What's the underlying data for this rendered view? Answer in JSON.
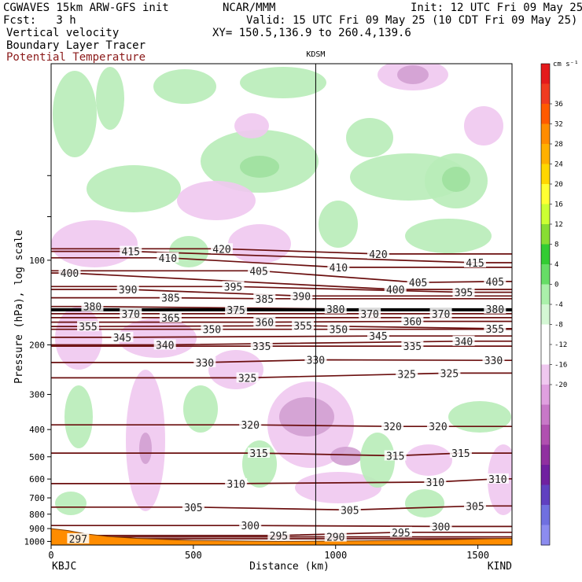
{
  "header": {
    "left_line1": "CGWAVES 15km ARW-GFS init",
    "left_line2": "Fcst:   3 h",
    "center_line1": "NCAR/MMM",
    "right_line1": "Init: 12 UTC Fri 09 May 25",
    "right_line2": "Valid: 15 UTC Fri 09 May 25 (10 CDT Fri 09 May 25)",
    "xy_line": "XY= 150.5,136.9 to 260.4,139.6"
  },
  "fields": {
    "field1": "Vertical velocity",
    "field2": "Boundary Layer Tracer",
    "field3": "Potential Temperature",
    "field3_color": "#8b1a1a"
  },
  "chart_data": {
    "type": "cross-section",
    "station_marker": {
      "label": "KDSM",
      "x": 930
    },
    "xlabel": "Distance (km)",
    "ylabel": "Pressure (hPa), log scale",
    "xlim": [
      0,
      1620
    ],
    "ylim": [
      1030,
      20
    ],
    "y_scale": "log",
    "x_ticks": [
      0,
      500,
      1000,
      1500
    ],
    "y_ticks": [
      100,
      200,
      300,
      400,
      500,
      600,
      700,
      800,
      900,
      1000
    ],
    "y_tick_labels": [
      "100",
      "200",
      "300",
      "400",
      "500",
      "600",
      "700",
      "800",
      "900",
      "1000"
    ],
    "x_endpoints": {
      "left": "KBJC",
      "right": "KIND"
    },
    "colorbar": {
      "unit": "cm s⁻¹",
      "labels": [
        "36",
        "32",
        "28",
        "24",
        "20",
        "16",
        "12",
        "8",
        "4",
        "0",
        "-4",
        "-8",
        "-12",
        "-16",
        "-20"
      ],
      "colors": [
        "#e41a1c",
        "#f03b20",
        "#ff5a00",
        "#ff8c00",
        "#ffb000",
        "#ffd700",
        "#ffff33",
        "#ccff33",
        "#88dd33",
        "#33cc33",
        "#66dd66",
        "#aaf0aa",
        "#d4f7d4",
        "#ffffff",
        "#ffffff",
        "#f0c8f0",
        "#e0a0e0",
        "#c878c8",
        "#b050b0",
        "#9030a0",
        "#7020a0",
        "#6040c0",
        "#7070e0",
        "#8c8cf0"
      ]
    },
    "theta_contours": [
      {
        "level": 297,
        "label_positions": [
          [
            95,
            978
          ]
        ]
      },
      {
        "level": 290,
        "label_positions": [
          [
            1000,
            963
          ]
        ]
      },
      {
        "level": 295,
        "label_positions": [
          [
            800,
            952
          ],
          [
            1230,
            928
          ]
        ]
      },
      {
        "level": 300,
        "label_positions": [
          [
            700,
            878
          ],
          [
            1370,
            885
          ]
        ]
      },
      {
        "level": 305,
        "label_positions": [
          [
            500,
            755
          ],
          [
            1050,
            773
          ],
          [
            1490,
            748
          ]
        ]
      },
      {
        "level": 310,
        "label_positions": [
          [
            650,
            623
          ],
          [
            1350,
            615
          ],
          [
            1570,
            599
          ]
        ]
      },
      {
        "level": 315,
        "label_positions": [
          [
            730,
            485
          ],
          [
            1210,
            496
          ],
          [
            1440,
            485
          ]
        ]
      },
      {
        "level": 320,
        "label_positions": [
          [
            700,
            385
          ],
          [
            1200,
            390
          ],
          [
            1360,
            390
          ]
        ]
      },
      {
        "level": 325,
        "label_positions": [
          [
            690,
            262
          ],
          [
            1250,
            254
          ],
          [
            1400,
            252
          ]
        ]
      },
      {
        "level": 330,
        "label_positions": [
          [
            540,
            231
          ],
          [
            930,
            226
          ],
          [
            1555,
            227
          ]
        ]
      },
      {
        "level": 335,
        "label_positions": [
          [
            740,
            202
          ],
          [
            1270,
            202
          ]
        ]
      },
      {
        "level": 340,
        "label_positions": [
          [
            400,
            200
          ],
          [
            1450,
            194
          ]
        ]
      },
      {
        "level": 345,
        "label_positions": [
          [
            250,
            188
          ],
          [
            1150,
            186
          ]
        ]
      },
      {
        "level": 350,
        "label_positions": [
          [
            565,
            176
          ],
          [
            1010,
            176
          ]
        ]
      },
      {
        "level": 355,
        "label_positions": [
          [
            130,
            172
          ],
          [
            885,
            171
          ],
          [
            1560,
            175
          ]
        ]
      },
      {
        "level": 360,
        "label_positions": [
          [
            750,
            166
          ],
          [
            1270,
            165
          ]
        ]
      },
      {
        "level": 365,
        "label_positions": [
          [
            420,
            160
          ]
        ]
      },
      {
        "level": 370,
        "label_positions": [
          [
            280,
            155
          ],
          [
            1120,
            155
          ],
          [
            1370,
            155
          ]
        ]
      },
      {
        "level": 375,
        "label_positions": [
          [
            650,
            150
          ]
        ]
      },
      {
        "level": 380,
        "label_positions": [
          [
            145,
            146
          ],
          [
            1000,
            149
          ],
          [
            1560,
            149
          ]
        ]
      },
      {
        "level": 385,
        "label_positions": [
          [
            420,
            136
          ],
          [
            750,
            137
          ]
        ]
      },
      {
        "level": 390,
        "label_positions": [
          [
            270,
            127
          ],
          [
            880,
            134
          ]
        ]
      },
      {
        "level": 395,
        "label_positions": [
          [
            640,
            124
          ],
          [
            1450,
            130
          ]
        ]
      },
      {
        "level": 400,
        "label_positions": [
          [
            65,
            111
          ],
          [
            1210,
            127
          ]
        ]
      },
      {
        "level": 405,
        "label_positions": [
          [
            730,
            109
          ],
          [
            1290,
            120
          ],
          [
            1560,
            119
          ]
        ]
      },
      {
        "level": 410,
        "label_positions": [
          [
            410,
            98
          ],
          [
            1010,
            106
          ]
        ]
      },
      {
        "level": 415,
        "label_positions": [
          [
            280,
            93
          ],
          [
            1490,
            102
          ]
        ]
      },
      {
        "level": 420,
        "label_positions": [
          [
            600,
            91
          ],
          [
            1150,
            95
          ]
        ]
      }
    ],
    "terrain_color": "#ff8c00",
    "thick_line_level_hPa": 150
  }
}
